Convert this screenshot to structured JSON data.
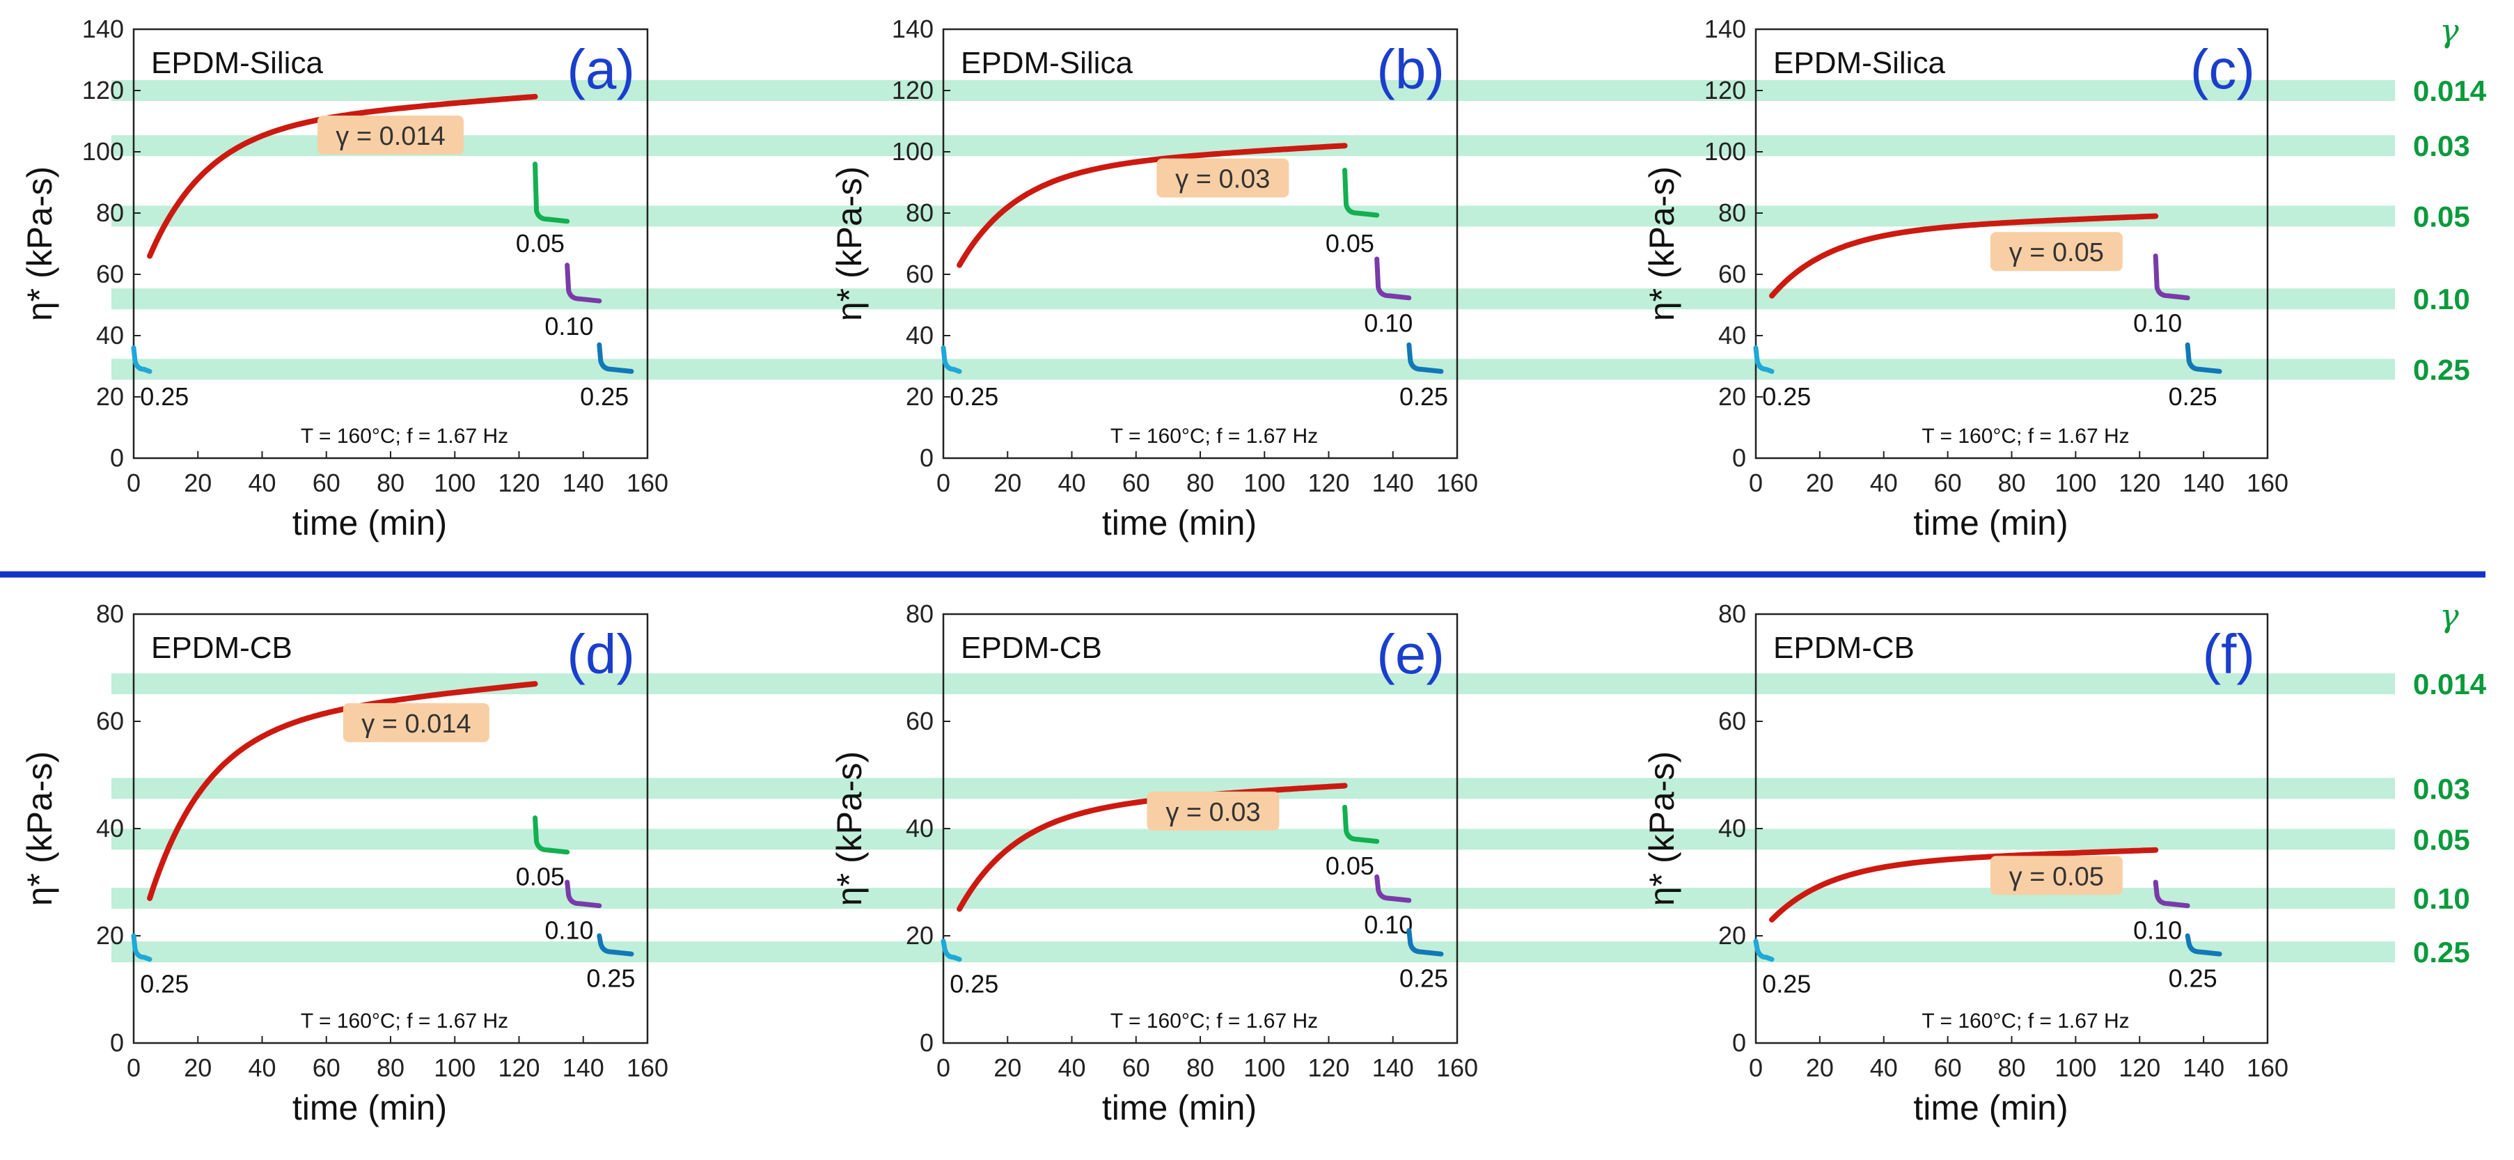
{
  "figure": {
    "separator_color": "#1433c8",
    "band_color": "#bfeed9",
    "strain_symbol": "γ",
    "right_strain_labels": [
      "0.014",
      "0.03",
      "0.05",
      "0.10",
      "0.25"
    ]
  },
  "chart_data": [
    {
      "type": "line",
      "id": "a",
      "letter": "(a)",
      "title": "EPDM-Silica",
      "xlabel": "time (min)",
      "ylabel": "η*  (kPa-s)",
      "xlim": [
        0,
        160
      ],
      "ylim": [
        0,
        140
      ],
      "xticks": [
        0,
        20,
        40,
        60,
        80,
        100,
        120,
        140,
        160
      ],
      "yticks": [
        0,
        20,
        40,
        60,
        80,
        100,
        120,
        140
      ],
      "condition": "T = 160°C; f = 1.67 Hz",
      "main_curve": {
        "x0": 5,
        "x1": 125,
        "y0": 66,
        "y1": 118,
        "color": "#cc1a10"
      },
      "main_label": "γ = 0.014",
      "main_label_at": [
        80,
        105
      ],
      "segments": [
        {
          "label": "0.25",
          "x0": 0,
          "x1": 5,
          "ytop": 36,
          "y": 29,
          "color": "#1fa8d8",
          "label_at": [
            2,
            20
          ]
        },
        {
          "label": "0.05",
          "x0": 125,
          "x1": 135,
          "ytop": 96,
          "y": 78,
          "color": "#12b050",
          "label_at": [
            119,
            70
          ]
        },
        {
          "label": "0.10",
          "x0": 135,
          "x1": 145,
          "ytop": 63,
          "y": 52,
          "color": "#7a3aa8",
          "label_at": [
            128,
            43
          ]
        },
        {
          "label": "0.25",
          "x0": 145,
          "x1": 155,
          "ytop": 37,
          "y": 29,
          "color": "#1278b8",
          "label_at": [
            139,
            20
          ]
        }
      ],
      "bands": [
        120,
        102,
        79,
        52,
        29
      ]
    },
    {
      "type": "line",
      "id": "b",
      "letter": "(b)",
      "title": "EPDM-Silica",
      "xlabel": "time (min)",
      "ylabel": "η*  (kPa-s)",
      "xlim": [
        0,
        160
      ],
      "ylim": [
        0,
        140
      ],
      "xticks": [
        0,
        20,
        40,
        60,
        80,
        100,
        120,
        140,
        160
      ],
      "yticks": [
        0,
        20,
        40,
        60,
        80,
        100,
        120,
        140
      ],
      "condition": "T = 160°C; f = 1.67 Hz",
      "main_curve": {
        "x0": 5,
        "x1": 125,
        "y0": 63,
        "y1": 102,
        "color": "#cc1a10"
      },
      "main_label": "γ = 0.03",
      "main_label_at": [
        87,
        91
      ],
      "segments": [
        {
          "label": "0.25",
          "x0": 0,
          "x1": 5,
          "ytop": 36,
          "y": 29,
          "color": "#1fa8d8",
          "label_at": [
            2,
            20
          ]
        },
        {
          "label": "0.05",
          "x0": 125,
          "x1": 135,
          "ytop": 94,
          "y": 80,
          "color": "#12b050",
          "label_at": [
            119,
            70
          ]
        },
        {
          "label": "0.10",
          "x0": 135,
          "x1": 145,
          "ytop": 65,
          "y": 53,
          "color": "#7a3aa8",
          "label_at": [
            131,
            44
          ]
        },
        {
          "label": "0.25",
          "x0": 145,
          "x1": 155,
          "ytop": 37,
          "y": 29,
          "color": "#1278b8",
          "label_at": [
            142,
            20
          ]
        }
      ],
      "bands": [
        120,
        102,
        79,
        52,
        29
      ]
    },
    {
      "type": "line",
      "id": "c",
      "letter": "(c)",
      "title": "EPDM-Silica",
      "xlabel": "time (min)",
      "ylabel": "η*  (kPa-s)",
      "xlim": [
        0,
        160
      ],
      "ylim": [
        0,
        140
      ],
      "xticks": [
        0,
        20,
        40,
        60,
        80,
        100,
        120,
        140,
        160
      ],
      "yticks": [
        0,
        20,
        40,
        60,
        80,
        100,
        120,
        140
      ],
      "condition": "T = 160°C; f = 1.67 Hz",
      "main_curve": {
        "x0": 5,
        "x1": 125,
        "y0": 53,
        "y1": 79,
        "color": "#cc1a10"
      },
      "main_label": "γ = 0.05",
      "main_label_at": [
        94,
        67
      ],
      "segments": [
        {
          "label": "0.25",
          "x0": 0,
          "x1": 5,
          "ytop": 36,
          "y": 29,
          "color": "#1fa8d8",
          "label_at": [
            2,
            20
          ]
        },
        {
          "label": "0.10",
          "x0": 125,
          "x1": 135,
          "ytop": 66,
          "y": 53,
          "color": "#7a3aa8",
          "label_at": [
            118,
            44
          ]
        },
        {
          "label": "0.25",
          "x0": 135,
          "x1": 145,
          "ytop": 37,
          "y": 29,
          "color": "#1278b8",
          "label_at": [
            129,
            20
          ]
        }
      ],
      "bands": [
        120,
        102,
        79,
        52,
        29
      ]
    },
    {
      "type": "line",
      "id": "d",
      "letter": "(d)",
      "title": "EPDM-CB",
      "xlabel": "time (min)",
      "ylabel": "η*  (kPa-s)",
      "xlim": [
        0,
        160
      ],
      "ylim": [
        0,
        80
      ],
      "xticks": [
        0,
        20,
        40,
        60,
        80,
        100,
        120,
        140,
        160
      ],
      "yticks": [
        0,
        20,
        40,
        60,
        80
      ],
      "condition": "T = 160°C; f = 1.67 Hz",
      "main_curve": {
        "x0": 5,
        "x1": 125,
        "y0": 27,
        "y1": 67,
        "color": "#cc1a10"
      },
      "main_label": "γ = 0.014",
      "main_label_at": [
        88,
        59.5
      ],
      "segments": [
        {
          "label": "0.25",
          "x0": 0,
          "x1": 5,
          "ytop": 20,
          "y": 16,
          "color": "#1fa8d8",
          "label_at": [
            2,
            11
          ]
        },
        {
          "label": "0.05",
          "x0": 125,
          "x1": 135,
          "ytop": 42,
          "y": 36,
          "color": "#12b050",
          "label_at": [
            119,
            31
          ]
        },
        {
          "label": "0.10",
          "x0": 135,
          "x1": 145,
          "ytop": 30,
          "y": 26,
          "color": "#7a3aa8",
          "label_at": [
            128,
            21
          ]
        },
        {
          "label": "0.25",
          "x0": 145,
          "x1": 155,
          "ytop": 20,
          "y": 17,
          "color": "#1278b8",
          "label_at": [
            141,
            12
          ]
        }
      ],
      "bands": [
        67,
        47.5,
        38,
        27,
        17
      ]
    },
    {
      "type": "line",
      "id": "e",
      "letter": "(e)",
      "title": "EPDM-CB",
      "xlabel": "time (min)",
      "ylabel": "η*  (kPa-s)",
      "xlim": [
        0,
        160
      ],
      "ylim": [
        0,
        80
      ],
      "xticks": [
        0,
        20,
        40,
        60,
        80,
        100,
        120,
        140,
        160
      ],
      "yticks": [
        0,
        20,
        40,
        60,
        80
      ],
      "condition": "T = 160°C; f = 1.67 Hz",
      "main_curve": {
        "x0": 5,
        "x1": 125,
        "y0": 25,
        "y1": 48,
        "color": "#cc1a10"
      },
      "main_label": "γ = 0.03",
      "main_label_at": [
        84,
        43
      ],
      "segments": [
        {
          "label": "0.25",
          "x0": 0,
          "x1": 5,
          "ytop": 19,
          "y": 16,
          "color": "#1fa8d8",
          "label_at": [
            2,
            11
          ]
        },
        {
          "label": "0.05",
          "x0": 125,
          "x1": 135,
          "ytop": 44,
          "y": 38,
          "color": "#12b050",
          "label_at": [
            119,
            33
          ]
        },
        {
          "label": "0.10",
          "x0": 135,
          "x1": 145,
          "ytop": 31,
          "y": 27,
          "color": "#7a3aa8",
          "label_at": [
            131,
            22
          ]
        },
        {
          "label": "0.25",
          "x0": 145,
          "x1": 155,
          "ytop": 21,
          "y": 17,
          "color": "#1278b8",
          "label_at": [
            142,
            12
          ]
        }
      ],
      "bands": [
        67,
        47.5,
        38,
        27,
        17
      ]
    },
    {
      "type": "line",
      "id": "f",
      "letter": "(f)",
      "title": "EPDM-CB",
      "xlabel": "time (min)",
      "ylabel": "η*  (kPa-s)",
      "xlim": [
        0,
        160
      ],
      "ylim": [
        0,
        80
      ],
      "xticks": [
        0,
        20,
        40,
        60,
        80,
        100,
        120,
        140,
        160
      ],
      "yticks": [
        0,
        20,
        40,
        60,
        80
      ],
      "condition": "T = 160°C; f = 1.67 Hz",
      "main_curve": {
        "x0": 5,
        "x1": 125,
        "y0": 23,
        "y1": 36,
        "color": "#cc1a10"
      },
      "main_label": "γ = 0.05",
      "main_label_at": [
        94,
        31
      ],
      "segments": [
        {
          "label": "0.25",
          "x0": 0,
          "x1": 5,
          "ytop": 19,
          "y": 16,
          "color": "#1fa8d8",
          "label_at": [
            2,
            11
          ]
        },
        {
          "label": "0.10",
          "x0": 125,
          "x1": 135,
          "ytop": 30,
          "y": 26,
          "color": "#7a3aa8",
          "label_at": [
            118,
            21
          ]
        },
        {
          "label": "0.25",
          "x0": 135,
          "x1": 145,
          "ytop": 20,
          "y": 17,
          "color": "#1278b8",
          "label_at": [
            129,
            12
          ]
        }
      ],
      "bands": [
        67,
        47.5,
        38,
        27,
        17
      ]
    }
  ]
}
